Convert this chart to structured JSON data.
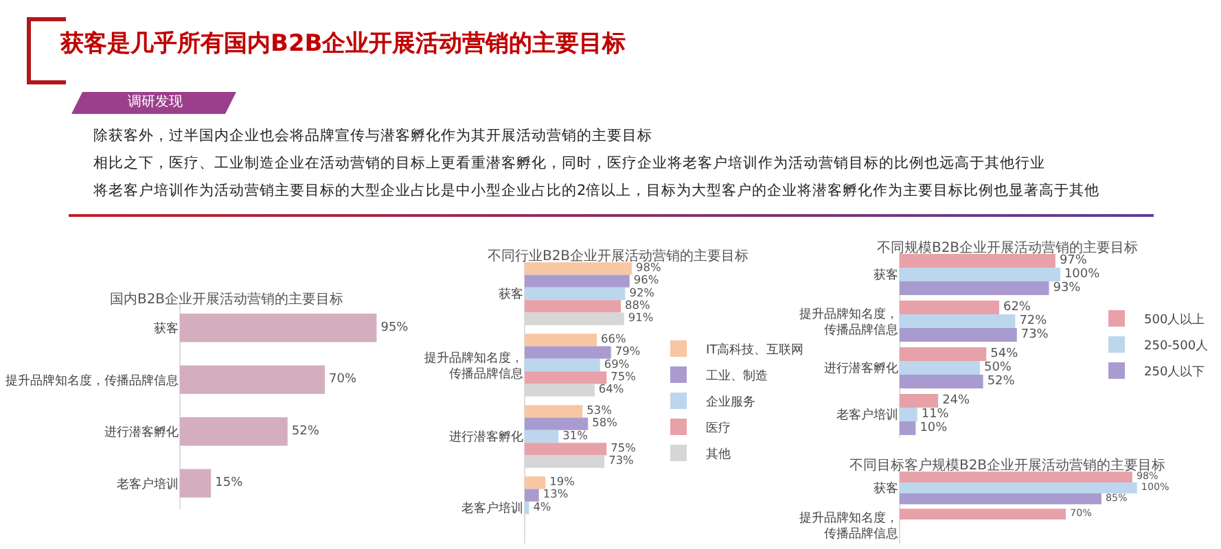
{
  "chart_data": [
    {
      "type": "other",
      "title": "获客是几乎所有国内B2B企业开展活动营销的主要目标",
      "subtitle": "调研发现",
      "annotations": [
        "除获客外，过半国内企业也会将品牌宣传与潜客孵化作为其开展活动营销的主要目标",
        "相比之下，医疗、工业制造企业在活动营销的目标上更看重潜客孵化，同时，医疗企业将老客户培训作为活动营销目标的比例也远高于其他行业",
        "将老客户培训作为活动营销主要目标的大型企业占比是中小型企业占比的2倍以上，目标为大型客户的企业将潜客孵化作为主要目标比例也显著高于其他"
      ]
    },
    {
      "type": "bar",
      "orientation": "horizontal",
      "title": "国内B2B企业开展活动营销的主要目标",
      "categories": [
        "获客",
        "提升品牌知名度，传播品牌信息",
        "进行潜客孵化",
        "老客户培训"
      ],
      "series": [
        {
          "color": "#d4aebf",
          "values": [
            95,
            70,
            52,
            15
          ],
          "value_labels": [
            "95%",
            "70%",
            "52%",
            "15%"
          ]
        }
      ],
      "legend": false
    },
    {
      "type": "bar",
      "orientation": "horizontal",
      "title": "不同行业B2B企业开展活动营销的主要目标",
      "categories": [
        "获客",
        "提升品牌知名度，传播品牌信息",
        "进行潜客孵化",
        "老客户培训"
      ],
      "legend": "right",
      "series": [
        {
          "name": "IT高科技、互联网",
          "color": "#f7c6a3",
          "values": [
            98,
            66,
            53,
            19
          ],
          "value_labels": [
            "98%",
            "66%",
            "53%",
            "19%"
          ]
        },
        {
          "name": "工业、制造",
          "color": "#a99bcf",
          "values": [
            96,
            79,
            58,
            13
          ],
          "value_labels": [
            "96%",
            "79%",
            "58%",
            "13%"
          ]
        },
        {
          "name": "企业服务",
          "color": "#bcd6ee",
          "values": [
            92,
            69,
            31,
            4
          ],
          "value_labels": [
            "92%",
            "69%",
            "31%",
            "4%"
          ]
        },
        {
          "name": "医疗",
          "color": "#e8a1a8",
          "values": [
            88,
            75,
            75,
            null
          ],
          "value_labels": [
            "88%",
            "75%",
            "75%",
            null
          ]
        },
        {
          "name": "其他",
          "color": "#d6d6d6",
          "values": [
            91,
            64,
            73,
            null
          ],
          "value_labels": [
            "91%",
            "64%",
            "73%",
            null
          ]
        }
      ]
    },
    {
      "type": "bar",
      "orientation": "horizontal",
      "title": "不同规模B2B企业开展活动营销的主要目标",
      "categories": [
        "获客",
        "提升品牌知名度，传播品牌信息",
        "进行潜客孵化",
        "老客户培训"
      ],
      "legend": "right",
      "series": [
        {
          "name": "500人以上",
          "color": "#e8a1a8",
          "values": [
            97,
            62,
            54,
            24
          ],
          "value_labels": [
            "97%",
            "62%",
            "54%",
            "24%"
          ]
        },
        {
          "name": "250-500人",
          "color": "#bcd6ee",
          "values": [
            100,
            72,
            50,
            11
          ],
          "value_labels": [
            "100%",
            "72%",
            "50%",
            "11%"
          ]
        },
        {
          "name": "250人以下",
          "color": "#a99bcf",
          "values": [
            93,
            73,
            52,
            10
          ],
          "value_labels": [
            "93%",
            "73%",
            "52%",
            "10%"
          ]
        }
      ]
    },
    {
      "type": "bar",
      "orientation": "horizontal",
      "title": "不同目标客户规模B2B企业开展活动营销的主要目标",
      "categories": [
        "获客",
        "提升品牌知名度，传播品牌信息"
      ],
      "legend": false,
      "series": [
        {
          "color": "#e8a1a8",
          "values": [
            98,
            70
          ],
          "value_labels": [
            "98%",
            "70%"
          ]
        },
        {
          "color": "#bcd6ee",
          "values": [
            100,
            null
          ],
          "value_labels": [
            "100%",
            null
          ]
        },
        {
          "color": "#a99bcf",
          "values": [
            85,
            null
          ],
          "value_labels": [
            "85%",
            null
          ]
        }
      ]
    }
  ]
}
